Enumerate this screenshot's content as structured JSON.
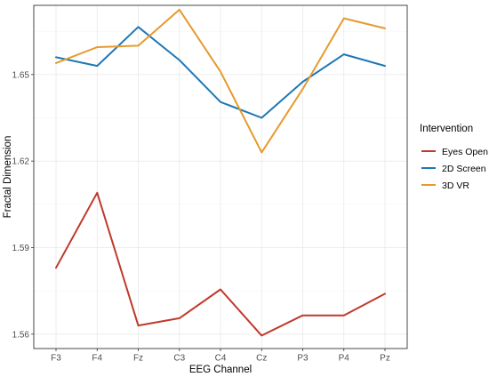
{
  "chart_data": {
    "type": "line",
    "title": "",
    "xlabel": "EEG Channel",
    "ylabel": "Fractal Dimension",
    "categories": [
      "F3",
      "F4",
      "Fz",
      "C3",
      "C4",
      "Cz",
      "P3",
      "P4",
      "Pz"
    ],
    "y_ticks": [
      1.56,
      1.59,
      1.62,
      1.65
    ],
    "y_tick_labels": [
      "1.56",
      "1.59",
      "1.62",
      "1.65"
    ],
    "ylim": [
      1.555,
      1.674
    ],
    "grid": true,
    "legend": {
      "title": "Intervention",
      "position": "right"
    },
    "series": [
      {
        "name": "Eyes Open",
        "color": "#c0392b",
        "values": [
          1.583,
          1.609,
          1.563,
          1.5655,
          1.5755,
          1.5595,
          1.5665,
          1.5665,
          1.574
        ]
      },
      {
        "name": "2D Screen",
        "color": "#1f77b4",
        "values": [
          1.656,
          1.653,
          1.6665,
          1.655,
          1.6405,
          1.635,
          1.6475,
          1.657,
          1.653
        ]
      },
      {
        "name": "3D VR",
        "color": "#e69a2e",
        "values": [
          1.654,
          1.6595,
          1.66,
          1.6725,
          1.651,
          1.623,
          1.645,
          1.6695,
          1.666
        ]
      }
    ]
  }
}
